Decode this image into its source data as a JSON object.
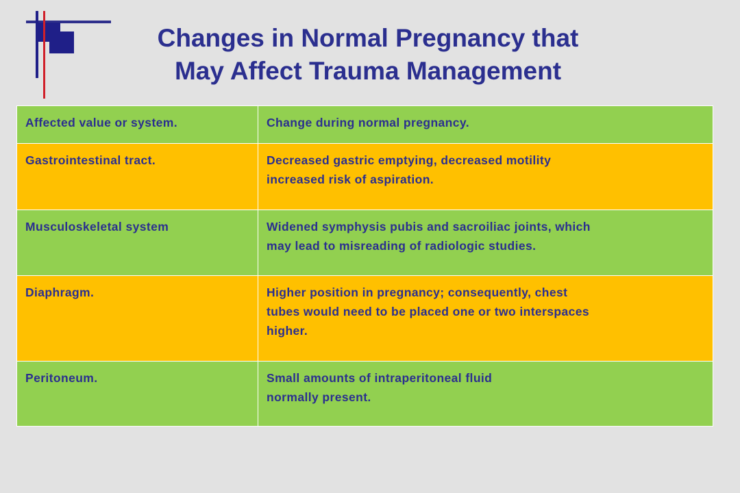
{
  "title": {
    "line1": "Changes in Normal Pregnancy that",
    "line2": "May  Affect Trauma Management"
  },
  "table": {
    "headers": [
      "Affected value or system.",
      "Change during normal pregnancy."
    ],
    "rows": [
      {
        "system": "Gastrointestinal tract.",
        "change": "Decreased gastric emptying, decreased motility\nincreased risk of aspiration."
      },
      {
        "system": "Musculoskeletal system",
        "change": "Widened symphysis pubis and sacroiliac joints, which\nmay lead to misreading of radiologic studies."
      },
      {
        "system": "Diaphragm.",
        "change": "Higher position in pregnancy; consequently, chest\ntubes would need to be placed one or two interspaces\nhigher."
      },
      {
        "system": "Peritoneum.",
        "change": "Small amounts of intraperitoneal fluid\nnormally present."
      }
    ]
  },
  "colors": {
    "title_text": "#2b2f8f",
    "green_row": "#92d050",
    "orange_row": "#ffc000",
    "background": "#e2e2e2"
  }
}
